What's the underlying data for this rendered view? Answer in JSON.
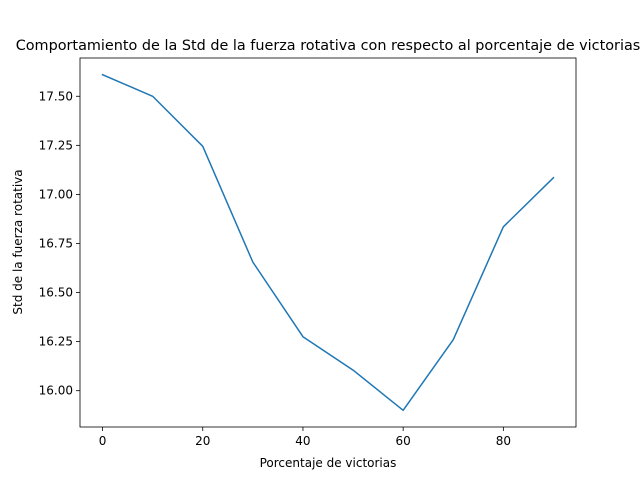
{
  "chart_data": {
    "type": "line",
    "title": "Comportamiento de la Std de la fuerza rotativa con respecto al porcentaje de victorias",
    "xlabel": "Porcentaje de victorias",
    "ylabel": "Std de la fuerza rotativa",
    "xlim": [
      -4.5,
      94.5
    ],
    "ylim": [
      15.815,
      17.695
    ],
    "xticks": [
      0,
      20,
      40,
      60,
      80
    ],
    "yticks": [
      16.0,
      16.25,
      16.5,
      16.75,
      17.0,
      17.25,
      17.5
    ],
    "ytick_labels": [
      "16.00",
      "16.25",
      "16.50",
      "16.75",
      "17.00",
      "17.25",
      "17.50"
    ],
    "grid": false,
    "legend": "none",
    "color": "#1f77b4",
    "series": [
      {
        "x": [
          0,
          10,
          20,
          30,
          40,
          50,
          60,
          70,
          80,
          90
        ],
        "values": [
          17.61,
          17.5,
          17.245,
          16.655,
          16.275,
          16.105,
          15.9,
          16.26,
          16.835,
          17.085
        ]
      }
    ]
  }
}
